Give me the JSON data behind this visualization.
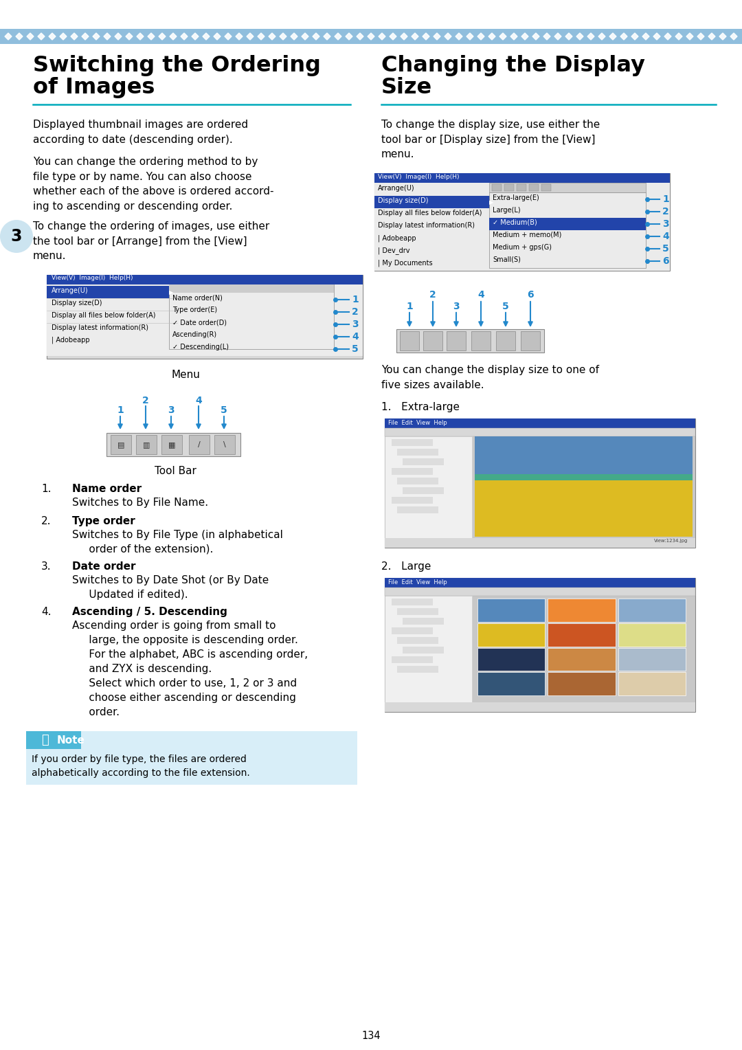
{
  "page_number": "134",
  "bg_color": "#ffffff",
  "top_border_color": "#90bedd",
  "left_title_line1": "Switching the Ordering",
  "left_title_line2": "of Images",
  "right_title_line1": "Changing the Display",
  "right_title_line2": "Size",
  "title_underline_color": "#00aabb",
  "chapter_number": "3",
  "chapter_bubble_color": "#cce4f0",
  "para1": "Displayed thumbnail images are ordered\naccording to date (descending order).",
  "para2": "You can change the ordering method to by\nfile type or by name. You can also choose\nwhether each of the above is ordered accord-\ning to ascending or descending order.",
  "para3": "To change the ordering of images, use either\nthe tool bar or [Arrange] from the [View]\nmenu.",
  "right_para1": "To change the display size, use either the\ntool bar or [Display size] from the [View]\nmenu.",
  "menu_caption": "Menu",
  "toolbar_caption": "Tool Bar",
  "list_items": [
    [
      "1.",
      "Name order",
      "Switches to By File Name."
    ],
    [
      "2.",
      "Type order",
      "Switches to By File Type (in alphabetical\n     order of the extension)."
    ],
    [
      "3.",
      "Date order",
      "Switches to By Date Shot (or By Date\n     Updated if edited)."
    ],
    [
      "4.",
      "Ascending / 5. Descending",
      "Ascending order is going from small to\n     large, the opposite is descending order.\n     For the alphabet, ABC is ascending order,\n     and ZYX is descending.\n     Select which order to use, 1, 2 or 3 and\n     choose either ascending or descending\n     order."
    ]
  ],
  "note_bg": "#d8eef8",
  "note_header_bg": "#4db8d8",
  "note_text": "If you order by file type, the files are ordered\nalphabetically according to the file extension.",
  "right_text2": "You can change the display size to one of\nfive sizes available.",
  "right_item1": "1.   Extra-large",
  "right_item2": "2.   Large"
}
